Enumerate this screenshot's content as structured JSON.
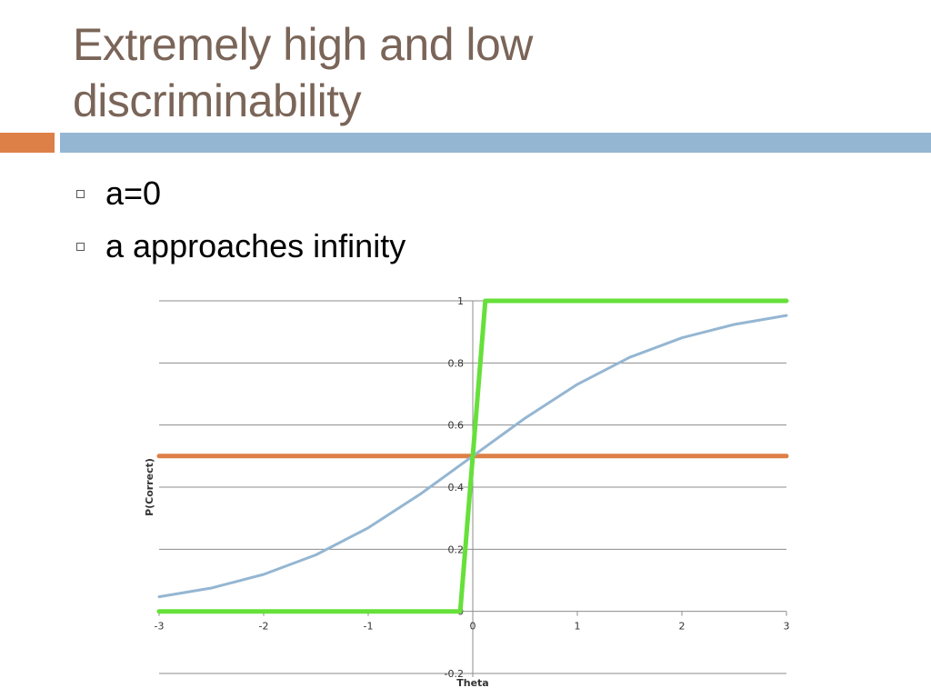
{
  "slide": {
    "title_lines": [
      "Extremely high and low",
      "discriminability"
    ],
    "bullets": [
      "a=0",
      "a approaches infinity"
    ],
    "accent_colors": {
      "orange": "#dd8047",
      "blue": "#94b6d2",
      "title": "#7a6558"
    }
  },
  "chart_data": {
    "type": "line",
    "xlabel": "Theta",
    "ylabel": "P(Correct)",
    "xlim": [
      -3,
      3
    ],
    "ylim": [
      -0.2,
      1
    ],
    "x_ticks": [
      "-3",
      "-2",
      "-1",
      "0",
      "1",
      "2",
      "3"
    ],
    "y_ticks": [
      "-0.2",
      "0",
      "0.2",
      "0.4",
      "0.6",
      "0.8",
      "1"
    ],
    "grid": "horizontal",
    "series": [
      {
        "color": "#dd8047",
        "x": [
          -3,
          3
        ],
        "y": [
          0.5,
          0.5
        ]
      },
      {
        "color": "#94b6d2",
        "x": [
          -3,
          -2.5,
          -2,
          -1.5,
          -1,
          -0.5,
          0,
          0.5,
          1,
          1.5,
          2,
          2.5,
          3
        ],
        "y": [
          0.047,
          0.075,
          0.119,
          0.182,
          0.269,
          0.378,
          0.5,
          0.622,
          0.731,
          0.818,
          0.881,
          0.924,
          0.953
        ]
      },
      {
        "color": "#66e03a",
        "x": [
          -3,
          -0.12,
          0.12,
          3
        ],
        "y": [
          0,
          0,
          1,
          1
        ]
      }
    ]
  }
}
